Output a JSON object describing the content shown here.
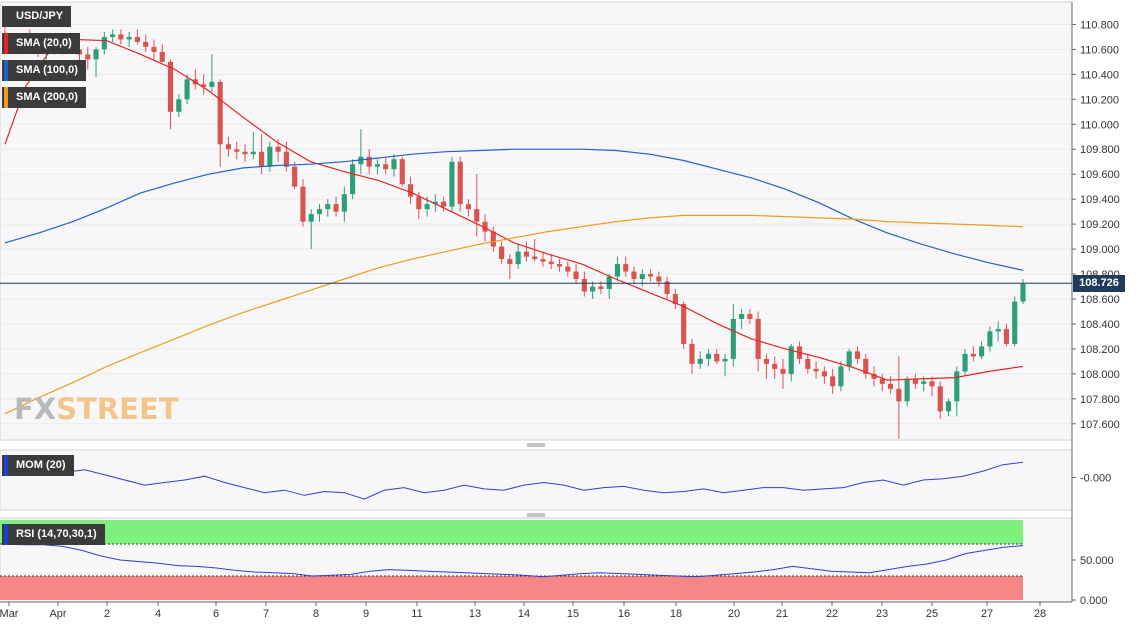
{
  "chart_data": {
    "type": "candlestick",
    "symbol": "USD/JPY",
    "current_price": "108.726",
    "y_ticks": [
      "110.800",
      "110.600",
      "110.400",
      "110.200",
      "110.000",
      "109.800",
      "109.600",
      "109.400",
      "109.200",
      "109.000",
      "108.800",
      "108.600",
      "108.400",
      "108.200",
      "108.000",
      "107.800",
      "107.600"
    ],
    "y_range": [
      107.47,
      110.98
    ],
    "x_ticks": [
      "Mar",
      "Apr",
      "2",
      "4",
      "6",
      "7",
      "8",
      "9",
      "11",
      "13",
      "14",
      "15",
      "16",
      "18",
      "20",
      "21",
      "22",
      "23",
      "25",
      "27",
      "28"
    ],
    "candles": [
      [
        110.7,
        110.78,
        110.62,
        110.66
      ],
      [
        110.66,
        110.72,
        110.58,
        110.62
      ],
      [
        110.62,
        110.72,
        110.56,
        110.68
      ],
      [
        110.68,
        110.76,
        110.6,
        110.62
      ],
      [
        110.62,
        110.7,
        110.54,
        110.58
      ],
      [
        110.58,
        110.66,
        110.52,
        110.62
      ],
      [
        110.62,
        110.68,
        110.56,
        110.6
      ],
      [
        110.6,
        110.64,
        110.56,
        110.62
      ],
      [
        110.62,
        110.66,
        110.58,
        110.6
      ],
      [
        110.6,
        110.66,
        110.5,
        110.56
      ],
      [
        110.56,
        110.62,
        110.44,
        110.52
      ],
      [
        110.52,
        110.62,
        110.38,
        110.6
      ],
      [
        110.6,
        110.74,
        110.56,
        110.7
      ],
      [
        110.7,
        110.76,
        110.66,
        110.72
      ],
      [
        110.72,
        110.76,
        110.64,
        110.68
      ],
      [
        110.68,
        110.74,
        110.62,
        110.7
      ],
      [
        110.7,
        110.76,
        110.64,
        110.66
      ],
      [
        110.66,
        110.72,
        110.58,
        110.62
      ],
      [
        110.62,
        110.68,
        110.52,
        110.58
      ],
      [
        110.58,
        110.64,
        110.5,
        110.5
      ],
      [
        110.5,
        110.52,
        109.96,
        110.1
      ],
      [
        110.1,
        110.24,
        110.06,
        110.2
      ],
      [
        110.2,
        110.4,
        110.16,
        110.36
      ],
      [
        110.36,
        110.44,
        110.28,
        110.32
      ],
      [
        110.32,
        110.4,
        110.24,
        110.3
      ],
      [
        110.3,
        110.56,
        110.26,
        110.34
      ],
      [
        110.34,
        110.36,
        109.66,
        109.84
      ],
      [
        109.84,
        109.9,
        109.74,
        109.8
      ],
      [
        109.8,
        109.86,
        109.72,
        109.78
      ],
      [
        109.78,
        109.84,
        109.7,
        109.76
      ],
      [
        109.76,
        109.94,
        109.72,
        109.78
      ],
      [
        109.78,
        109.92,
        109.6,
        109.66
      ],
      [
        109.66,
        109.86,
        109.62,
        109.82
      ],
      [
        109.82,
        109.88,
        109.7,
        109.78
      ],
      [
        109.78,
        109.86,
        109.62,
        109.66
      ],
      [
        109.66,
        109.7,
        109.48,
        109.5
      ],
      [
        109.5,
        109.56,
        109.18,
        109.22
      ],
      [
        109.22,
        109.32,
        109.0,
        109.28
      ],
      [
        109.28,
        109.36,
        109.22,
        109.32
      ],
      [
        109.32,
        109.4,
        109.26,
        109.36
      ],
      [
        109.36,
        109.42,
        109.26,
        109.3
      ],
      [
        109.3,
        109.5,
        109.22,
        109.44
      ],
      [
        109.44,
        109.72,
        109.4,
        109.68
      ],
      [
        109.68,
        109.96,
        109.6,
        109.74
      ],
      [
        109.74,
        109.8,
        109.6,
        109.66
      ],
      [
        109.66,
        109.72,
        109.6,
        109.68
      ],
      [
        109.68,
        109.74,
        109.6,
        109.64
      ],
      [
        109.64,
        109.76,
        109.58,
        109.72
      ],
      [
        109.72,
        109.74,
        109.5,
        109.52
      ],
      [
        109.52,
        109.58,
        109.36,
        109.42
      ],
      [
        109.42,
        109.46,
        109.24,
        109.32
      ],
      [
        109.32,
        109.42,
        109.26,
        109.36
      ],
      [
        109.36,
        109.44,
        109.3,
        109.38
      ],
      [
        109.38,
        109.42,
        109.3,
        109.34
      ],
      [
        109.34,
        109.74,
        109.3,
        109.7
      ],
      [
        109.7,
        109.74,
        109.3,
        109.36
      ],
      [
        109.36,
        109.4,
        109.26,
        109.32
      ],
      [
        109.32,
        109.6,
        109.1,
        109.22
      ],
      [
        109.22,
        109.28,
        109.06,
        109.14
      ],
      [
        109.14,
        109.18,
        108.98,
        109.02
      ],
      [
        109.02,
        109.06,
        108.88,
        108.92
      ],
      [
        108.92,
        108.96,
        108.76,
        108.88
      ],
      [
        108.88,
        109.04,
        108.84,
        108.98
      ],
      [
        108.98,
        109.06,
        108.9,
        108.94
      ],
      [
        108.94,
        109.08,
        108.9,
        108.92
      ],
      [
        108.92,
        108.98,
        108.86,
        108.9
      ],
      [
        108.9,
        108.96,
        108.84,
        108.88
      ],
      [
        108.88,
        108.92,
        108.82,
        108.86
      ],
      [
        108.86,
        108.9,
        108.78,
        108.82
      ],
      [
        108.82,
        108.88,
        108.72,
        108.76
      ],
      [
        108.76,
        108.82,
        108.62,
        108.66
      ],
      [
        108.66,
        108.74,
        108.6,
        108.7
      ],
      [
        108.7,
        108.74,
        108.64,
        108.68
      ],
      [
        108.68,
        108.8,
        108.6,
        108.78
      ],
      [
        108.78,
        108.94,
        108.74,
        108.88
      ],
      [
        108.88,
        108.94,
        108.78,
        108.82
      ],
      [
        108.82,
        108.86,
        108.72,
        108.76
      ],
      [
        108.76,
        108.84,
        108.7,
        108.8
      ],
      [
        108.8,
        108.84,
        108.74,
        108.78
      ],
      [
        108.78,
        108.82,
        108.7,
        108.74
      ],
      [
        108.74,
        108.78,
        108.6,
        108.64
      ],
      [
        108.64,
        108.68,
        108.52,
        108.56
      ],
      [
        108.56,
        108.58,
        108.2,
        108.24
      ],
      [
        108.24,
        108.28,
        108.0,
        108.08
      ],
      [
        108.08,
        108.18,
        108.04,
        108.12
      ],
      [
        108.12,
        108.2,
        108.06,
        108.16
      ],
      [
        108.16,
        108.2,
        108.08,
        108.1
      ],
      [
        108.1,
        108.16,
        107.98,
        108.12
      ],
      [
        108.12,
        108.56,
        108.06,
        108.44
      ],
      [
        108.44,
        108.52,
        108.36,
        108.48
      ],
      [
        108.48,
        108.52,
        108.4,
        108.44
      ],
      [
        108.44,
        108.5,
        108.02,
        108.12
      ],
      [
        108.12,
        108.16,
        107.96,
        108.08
      ],
      [
        108.08,
        108.14,
        107.96,
        108.04
      ],
      [
        108.04,
        108.12,
        107.88,
        108.0
      ],
      [
        108.0,
        108.24,
        107.94,
        108.22
      ],
      [
        108.22,
        108.26,
        108.08,
        108.12
      ],
      [
        108.12,
        108.16,
        108.0,
        108.04
      ],
      [
        108.04,
        108.1,
        107.96,
        108.02
      ],
      [
        108.02,
        108.06,
        107.92,
        107.98
      ],
      [
        107.98,
        108.04,
        107.84,
        107.9
      ],
      [
        107.9,
        108.1,
        107.86,
        108.06
      ],
      [
        108.06,
        108.2,
        108.02,
        108.18
      ],
      [
        108.18,
        108.22,
        108.08,
        108.12
      ],
      [
        108.12,
        108.16,
        107.96,
        108.0
      ],
      [
        108.0,
        108.06,
        107.9,
        107.96
      ],
      [
        107.96,
        108.0,
        107.86,
        107.92
      ],
      [
        107.92,
        107.98,
        107.84,
        107.88
      ],
      [
        107.88,
        108.14,
        107.48,
        107.78
      ],
      [
        107.78,
        107.98,
        107.74,
        107.96
      ],
      [
        107.96,
        108.0,
        107.88,
        107.92
      ],
      [
        107.92,
        107.98,
        107.86,
        107.94
      ],
      [
        107.94,
        107.98,
        107.82,
        107.9
      ],
      [
        107.9,
        107.94,
        107.64,
        107.7
      ],
      [
        107.7,
        107.8,
        107.66,
        107.78
      ],
      [
        107.78,
        108.06,
        107.66,
        108.02
      ],
      [
        108.02,
        108.2,
        107.98,
        108.16
      ],
      [
        108.16,
        108.22,
        108.1,
        108.14
      ],
      [
        108.14,
        108.26,
        108.12,
        108.22
      ],
      [
        108.22,
        108.38,
        108.18,
        108.34
      ],
      [
        108.34,
        108.42,
        108.26,
        108.36
      ],
      [
        108.36,
        108.4,
        108.22,
        108.24
      ],
      [
        108.24,
        108.62,
        108.22,
        108.58
      ],
      [
        108.58,
        108.76,
        108.56,
        108.72
      ]
    ],
    "sma": [
      {
        "name": "SMA (20,0)",
        "color": "#e52424",
        "points": [
          [
            0,
            109.84
          ],
          [
            12,
            110.3
          ],
          [
            25,
            110.56
          ],
          [
            40,
            110.68
          ],
          [
            60,
            110.67
          ],
          [
            80,
            110.56
          ],
          [
            100,
            110.44
          ],
          [
            120,
            110.27
          ],
          [
            140,
            110.06
          ],
          [
            160,
            109.86
          ],
          [
            180,
            109.7
          ],
          [
            200,
            109.62
          ],
          [
            220,
            109.55
          ],
          [
            240,
            109.45
          ],
          [
            260,
            109.32
          ],
          [
            280,
            109.19
          ],
          [
            300,
            109.05
          ],
          [
            320,
            108.96
          ],
          [
            340,
            108.88
          ],
          [
            360,
            108.76
          ],
          [
            380,
            108.65
          ],
          [
            400,
            108.54
          ],
          [
            420,
            108.4
          ],
          [
            440,
            108.28
          ],
          [
            460,
            108.2
          ],
          [
            480,
            108.13
          ],
          [
            500,
            108.05
          ],
          [
            520,
            107.95
          ],
          [
            540,
            107.96
          ],
          [
            560,
            107.97
          ],
          [
            580,
            108.02
          ],
          [
            600,
            108.06
          ]
        ]
      },
      {
        "name": "SMA (100,0)",
        "color": "#1f63c4",
        "points": [
          [
            0,
            109.05
          ],
          [
            20,
            109.13
          ],
          [
            40,
            109.22
          ],
          [
            60,
            109.33
          ],
          [
            80,
            109.45
          ],
          [
            100,
            109.53
          ],
          [
            120,
            109.6
          ],
          [
            140,
            109.65
          ],
          [
            160,
            109.67
          ],
          [
            180,
            109.68
          ],
          [
            200,
            109.7
          ],
          [
            220,
            109.73
          ],
          [
            240,
            109.76
          ],
          [
            260,
            109.78
          ],
          [
            280,
            109.79
          ],
          [
            300,
            109.8
          ],
          [
            320,
            109.8
          ],
          [
            340,
            109.8
          ],
          [
            360,
            109.79
          ],
          [
            380,
            109.76
          ],
          [
            400,
            109.71
          ],
          [
            420,
            109.64
          ],
          [
            440,
            109.57
          ],
          [
            460,
            109.48
          ],
          [
            480,
            109.37
          ],
          [
            500,
            109.24
          ],
          [
            520,
            109.13
          ],
          [
            540,
            109.04
          ],
          [
            560,
            108.96
          ],
          [
            580,
            108.89
          ],
          [
            600,
            108.83
          ]
        ]
      },
      {
        "name": "SMA (200,0)",
        "color": "#f39a1e",
        "points": [
          [
            0,
            107.68
          ],
          [
            20,
            107.81
          ],
          [
            40,
            107.93
          ],
          [
            60,
            108.06
          ],
          [
            80,
            108.17
          ],
          [
            100,
            108.28
          ],
          [
            120,
            108.39
          ],
          [
            140,
            108.49
          ],
          [
            160,
            108.58
          ],
          [
            180,
            108.67
          ],
          [
            200,
            108.76
          ],
          [
            220,
            108.85
          ],
          [
            240,
            108.92
          ],
          [
            260,
            108.98
          ],
          [
            280,
            109.04
          ],
          [
            300,
            109.09
          ],
          [
            320,
            109.14
          ],
          [
            340,
            109.18
          ],
          [
            360,
            109.22
          ],
          [
            380,
            109.25
          ],
          [
            400,
            109.27
          ],
          [
            420,
            109.27
          ],
          [
            440,
            109.27
          ],
          [
            460,
            109.26
          ],
          [
            480,
            109.25
          ],
          [
            500,
            109.24
          ],
          [
            520,
            109.22
          ],
          [
            540,
            109.21
          ],
          [
            560,
            109.2
          ],
          [
            580,
            109.19
          ],
          [
            600,
            109.18
          ]
        ]
      }
    ],
    "indicators": [
      {
        "name": "MOM (20)",
        "y_tick": "-0.000",
        "values": [
          0.8,
          0.7,
          0.4,
          0.2,
          0.3,
          0.1,
          -0.1,
          -0.3,
          -0.2,
          -0.1,
          0.05,
          -0.2,
          -0.4,
          -0.6,
          -0.5,
          -0.7,
          -0.55,
          -0.6,
          -0.85,
          -0.5,
          -0.4,
          -0.6,
          -0.5,
          -0.3,
          -0.45,
          -0.5,
          -0.3,
          -0.2,
          -0.3,
          -0.5,
          -0.4,
          -0.35,
          -0.5,
          -0.6,
          -0.55,
          -0.45,
          -0.6,
          -0.5,
          -0.4,
          -0.4,
          -0.5,
          -0.45,
          -0.4,
          -0.2,
          -0.1,
          -0.3,
          -0.1,
          -0.05,
          0.05,
          0.25,
          0.5,
          0.6
        ]
      },
      {
        "name": "RSI (14,70,30,1)",
        "y_tick": "50.000",
        "y_tick_low": "0.000",
        "values": [
          70,
          69,
          69,
          67,
          62,
          55,
          50,
          48,
          46,
          43,
          42,
          40,
          37,
          35,
          34,
          33,
          30,
          31,
          32,
          36,
          38,
          37,
          36,
          35,
          34,
          33,
          32,
          31,
          29,
          31,
          33,
          34,
          33,
          32,
          31,
          30,
          29,
          31,
          33,
          35,
          38,
          42,
          39,
          36,
          35,
          34,
          38,
          42,
          45,
          50,
          58,
          62,
          66,
          68
        ]
      }
    ]
  },
  "legend": [
    {
      "label": "USD/JPY",
      "color": "#3b3b3b"
    },
    {
      "label": "SMA (20,0)",
      "color": "#e52424"
    },
    {
      "label": "SMA (100,0)",
      "color": "#1f63c4"
    },
    {
      "label": "SMA (200,0)",
      "color": "#f39a1e"
    }
  ],
  "watermark": {
    "fx": "FX",
    "street": "STREET"
  }
}
